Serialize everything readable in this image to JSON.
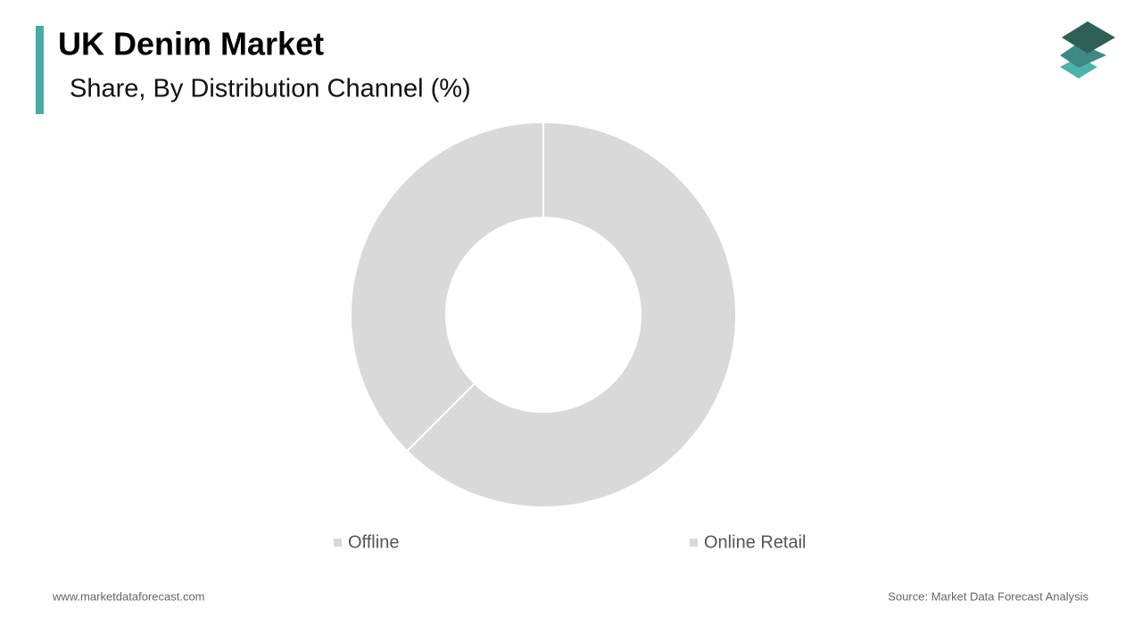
{
  "chart_data": {
    "type": "donut",
    "title": "UK Denim Market",
    "subtitle": "Share, By Distribution Channel (%)",
    "categories": [
      "Offline",
      "Online Retail"
    ],
    "values": [
      62.5,
      37.5
    ],
    "colors": [
      "#d9d9d9",
      "#d9d9d9"
    ]
  },
  "footer": {
    "website": "www.marketdataforecast.com",
    "source": "Source: Market Data Forecast Analysis"
  }
}
